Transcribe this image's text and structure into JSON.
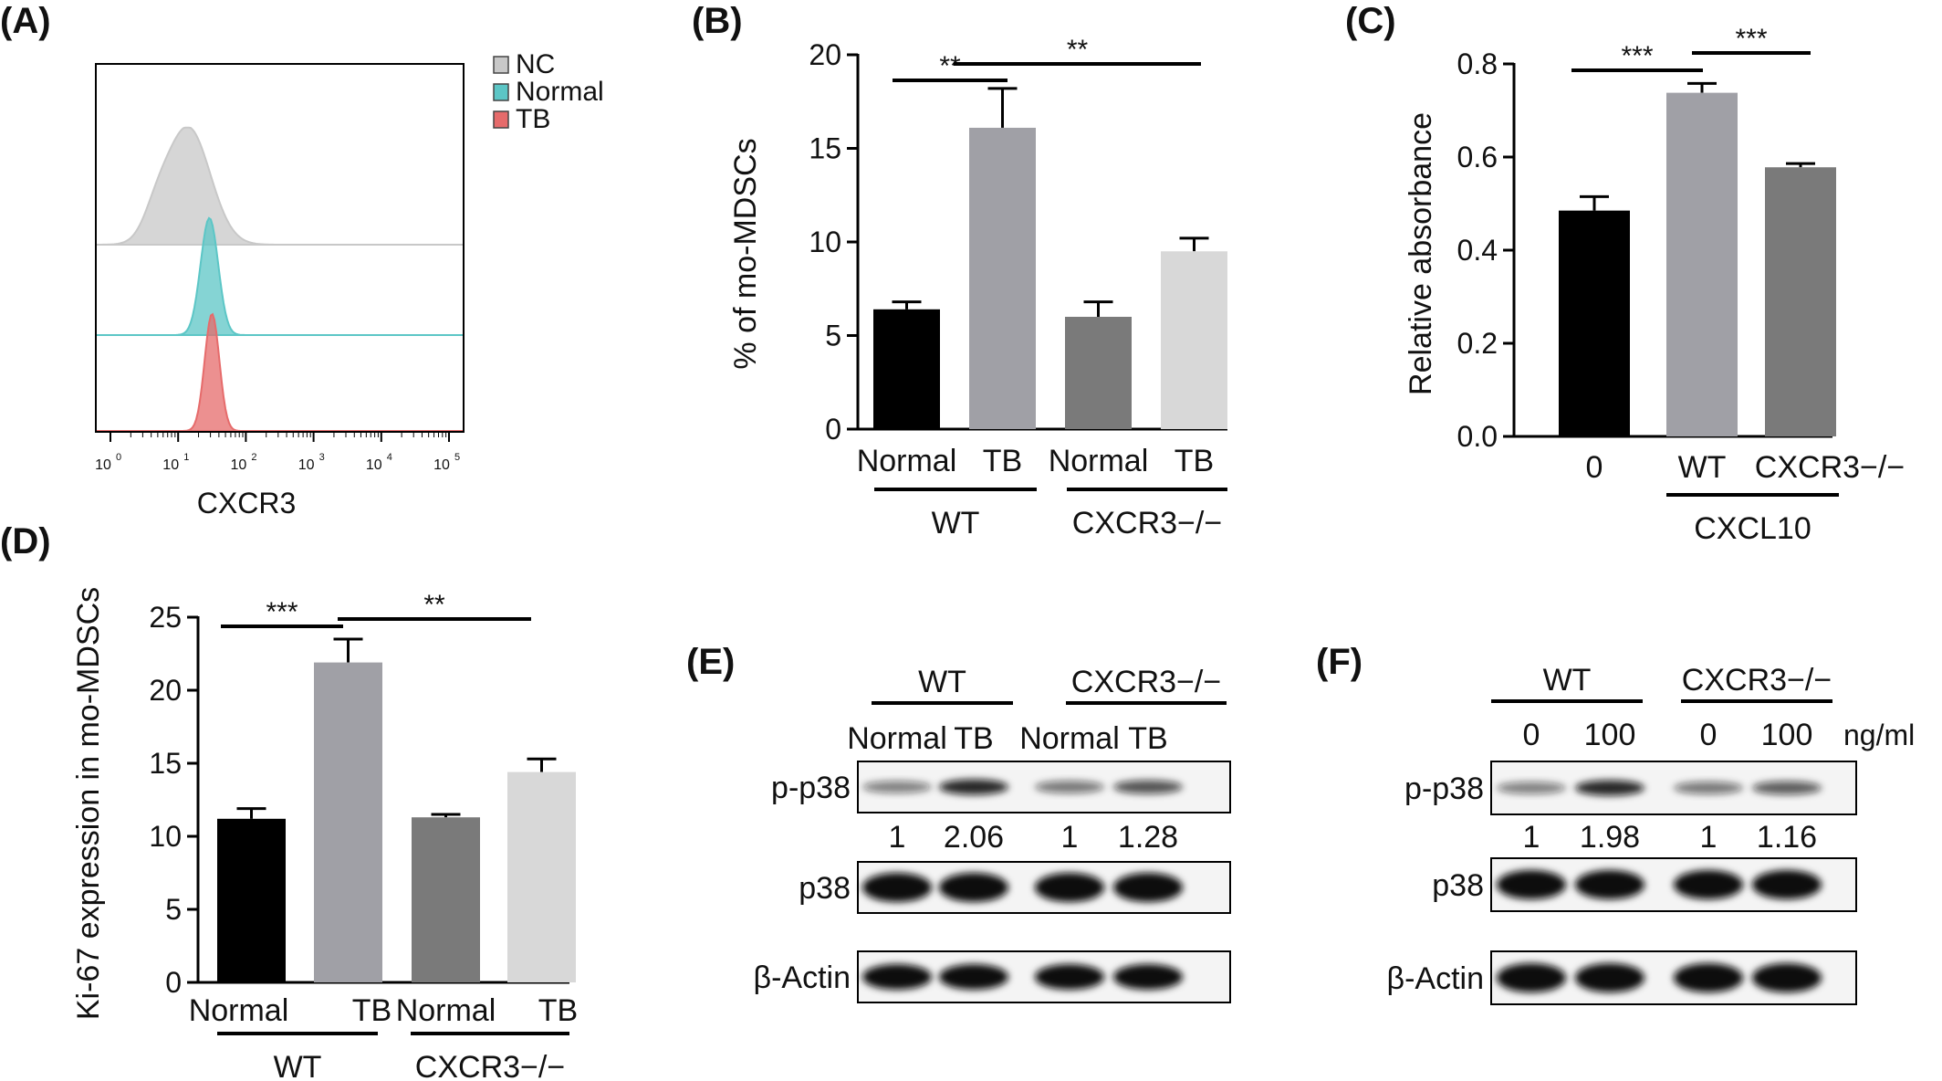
{
  "panel_labels": {
    "a": "(A)",
    "b": "(B)",
    "c": "(C)",
    "d": "(D)",
    "e": "(E)",
    "f": "(F)"
  },
  "chart_data": [
    {
      "panel": "(A)",
      "type": "area",
      "xlabel": "CXCR3",
      "x_scale": "log",
      "xlim": [
        1,
        100000
      ],
      "x_ticks": [
        "10",
        "10",
        "10",
        "10",
        "10",
        "10"
      ],
      "x_exps": [
        "0",
        "1",
        "2",
        "3",
        "4",
        "5"
      ],
      "legend": [
        "NC",
        "Normal",
        "TB"
      ],
      "colors": {
        "NC": "#c8c8c8",
        "Normal": "#5cc6c6",
        "TB": "#e66b6b"
      },
      "series": [
        {
          "name": "NC",
          "peak_x": 18,
          "peak_height": 0.95
        },
        {
          "name": "Normal",
          "peak_x": 35,
          "peak_height": 0.95
        },
        {
          "name": "TB",
          "peak_x": 38,
          "peak_height": 0.95
        }
      ]
    },
    {
      "panel": "(B)",
      "type": "bar",
      "ylabel": "% of mo-MDSCs",
      "ylim": [
        0,
        20
      ],
      "yticks": [
        "0",
        "5",
        "10",
        "15",
        "20"
      ],
      "categories": [
        "Normal",
        "TB",
        "Normal",
        "TB"
      ],
      "groups": [
        "WT",
        "CXCR3−/−"
      ],
      "values": [
        6.4,
        16.1,
        6.0,
        9.5
      ],
      "errors": [
        0.4,
        2.1,
        0.8,
        0.7
      ],
      "colors": [
        "#000000",
        "#a0a0a6",
        "#7a7a7a",
        "#d8d8d8"
      ],
      "significance": [
        "**",
        "**"
      ]
    },
    {
      "panel": "(C)",
      "type": "bar",
      "ylabel": "Relative absorbance",
      "ylim": [
        0,
        0.8
      ],
      "yticks": [
        "0.0",
        "0.2",
        "0.4",
        "0.6",
        "0.8"
      ],
      "categories": [
        "0",
        "WT",
        "CXCR3−/−"
      ],
      "group_label": "CXCL10",
      "values": [
        0.485,
        0.738,
        0.578
      ],
      "errors": [
        0.03,
        0.02,
        0.008
      ],
      "colors": [
        "#000000",
        "#a0a0a6",
        "#7a7a7a"
      ],
      "significance": [
        "***",
        "***"
      ]
    },
    {
      "panel": "(D)",
      "type": "bar",
      "ylabel": "Ki-67 expression in mo-MDSCs",
      "ylim": [
        0,
        25
      ],
      "yticks": [
        "0",
        "5",
        "10",
        "15",
        "20",
        "25"
      ],
      "categories": [
        "Normal",
        "TB",
        "Normal",
        "TB"
      ],
      "groups": [
        "WT",
        "CXCR3−/−"
      ],
      "values": [
        11.2,
        21.9,
        11.3,
        14.4
      ],
      "errors": [
        0.7,
        1.6,
        0.2,
        0.9
      ],
      "colors": [
        "#000000",
        "#a0a0a6",
        "#7a7a7a",
        "#d8d8d8"
      ],
      "significance": [
        "***",
        "**"
      ]
    }
  ],
  "blot_e": {
    "groups": [
      "WT",
      "CXCR3−/−"
    ],
    "lanes": [
      "Normal",
      "TB",
      "Normal",
      "TB"
    ],
    "rows": [
      "p-p38",
      "p38",
      "β-Actin"
    ],
    "quant": [
      "1",
      "2.06",
      "1",
      "1.28"
    ]
  },
  "blot_f": {
    "groups": [
      "WT",
      "CXCR3−/−"
    ],
    "lanes": [
      "0",
      "100",
      "0",
      "100"
    ],
    "unit": "ng/ml",
    "rows": [
      "p-p38",
      "p38",
      "β-Actin"
    ],
    "quant": [
      "1",
      "1.98",
      "1",
      "1.16"
    ]
  }
}
